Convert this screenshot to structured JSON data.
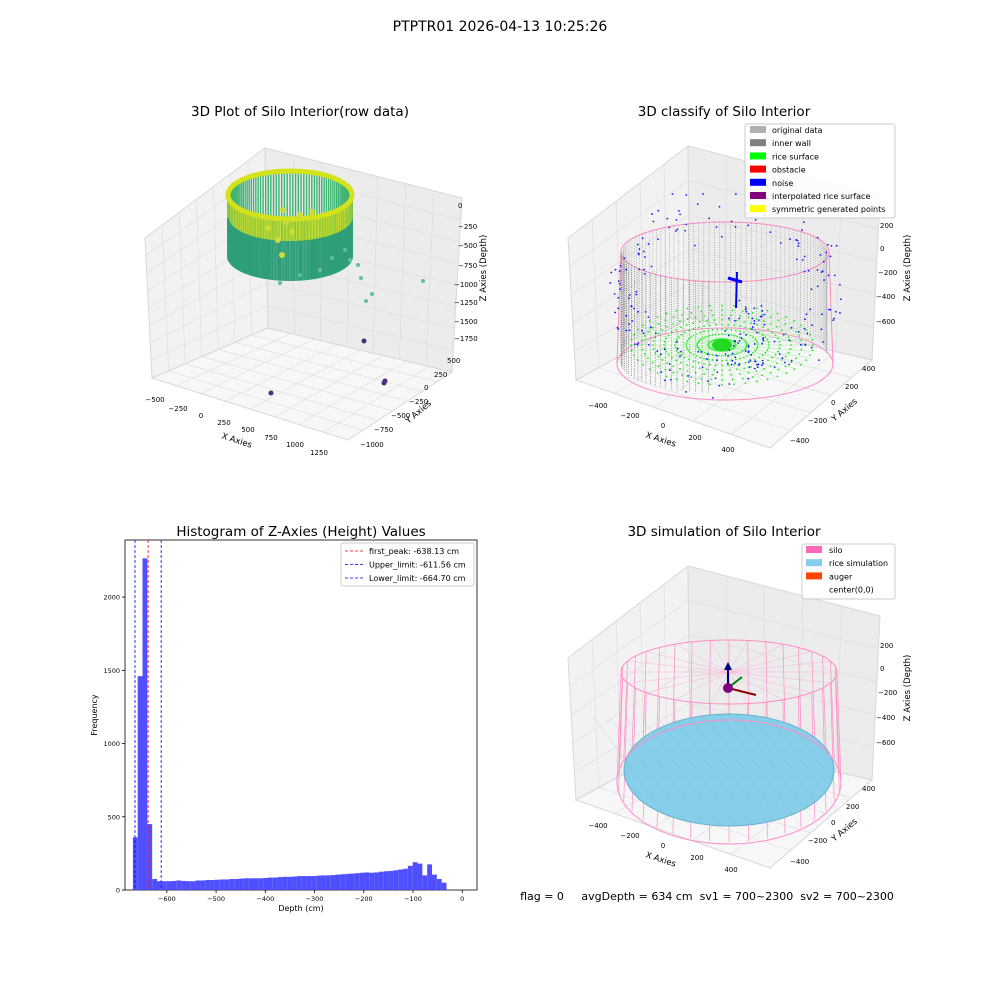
{
  "figure_title": "PTPTR01 2026-04-13 10:25:26",
  "panels": {
    "raw": {
      "title": "3D Plot of Silo Interior(row data)",
      "xlabel": "X Axies",
      "ylabel": "Y Axies",
      "zlabel": "Z Axies (Depth)",
      "xticks": [
        "−500",
        "−250",
        "0",
        "250",
        "500",
        "750",
        "1000",
        "1250"
      ],
      "yticks": [
        "500",
        "250",
        "0",
        "−250",
        "−500",
        "−750",
        "−1000"
      ],
      "zticks": [
        "0",
        "−250",
        "−500",
        "−750",
        "−1000",
        "−1250",
        "−1500",
        "−1750"
      ]
    },
    "classify": {
      "title": "3D classify of Silo Interior",
      "xlabel": "X Axies",
      "ylabel": "Y Axies",
      "zlabel": "Z Axies (Depth)",
      "xticks": [
        "−400",
        "−200",
        "0",
        "200",
        "400"
      ],
      "yticks": [
        "400",
        "200",
        "0",
        "−200",
        "−400"
      ],
      "zticks": [
        "200",
        "0",
        "−200",
        "−400",
        "−600"
      ],
      "legend": [
        {
          "label": "original data",
          "color": "#b0b0b0"
        },
        {
          "label": "inner wall",
          "color": "#808080"
        },
        {
          "label": "rice surface",
          "color": "#00ff00"
        },
        {
          "label": "obstacle",
          "color": "#ff0000"
        },
        {
          "label": "noise",
          "color": "#0000ff"
        },
        {
          "label": "interpolated rice surface",
          "color": "#800080"
        },
        {
          "label": "symmetric generated points",
          "color": "#ffff00"
        }
      ]
    },
    "simulation": {
      "title": "3D simulation of Silo Interior",
      "xlabel": "X Axies",
      "ylabel": "Y Axies",
      "zlabel": "Z Axies (Depth)",
      "xticks": [
        "−400",
        "−200",
        "0",
        "200",
        "400"
      ],
      "yticks": [
        "400",
        "200",
        "0",
        "−200",
        "−400"
      ],
      "zticks": [
        "200",
        "0",
        "−200",
        "−400",
        "−600"
      ],
      "legend": [
        {
          "label": "silo",
          "color": "#ff69b4"
        },
        {
          "label": "rice simulation",
          "color": "#87ceeb"
        },
        {
          "label": "auger",
          "color": "#ff4500"
        },
        {
          "label": "center(0,0)",
          "color": "#ffffff"
        }
      ]
    }
  },
  "status_line": "flag = 0     avgDepth = 634 cm  sv1 = 700~2300  sv2 = 700~2300",
  "chart_data": {
    "type": "bar",
    "title": "Histogram of Z-Axies (Height) Values",
    "xlabel": "Depth (cm)",
    "ylabel": "Frequency",
    "xlim": [
      -685,
      30
    ],
    "ylim": [
      0,
      2390
    ],
    "xticks": [
      -600,
      -500,
      -400,
      -300,
      -200,
      -100,
      0
    ],
    "xtick_labels": [
      "−600",
      "−500",
      "−400",
      "−300",
      "−200",
      "−100",
      "0"
    ],
    "yticks": [
      0,
      500,
      1000,
      1500,
      2000
    ],
    "yticks_labels": [
      "0",
      "500",
      "1000",
      "1500",
      "2000"
    ],
    "bar_color": "#4b4bff",
    "bin_width": 9.8,
    "bins_start": -669,
    "values": [
      360,
      1460,
      2265,
      450,
      75,
      60,
      60,
      60,
      62,
      65,
      62,
      60,
      60,
      65,
      65,
      68,
      68,
      70,
      72,
      72,
      75,
      75,
      78,
      80,
      80,
      80,
      80,
      82,
      85,
      85,
      88,
      90,
      90,
      92,
      95,
      95,
      95,
      95,
      98,
      100,
      100,
      102,
      105,
      108,
      110,
      112,
      115,
      118,
      120,
      118,
      120,
      125,
      128,
      130,
      135,
      140,
      145,
      165,
      190,
      180,
      100,
      175,
      105,
      75,
      50
    ],
    "vlines": [
      {
        "label": "first_peak: -638.13 cm",
        "x": -638.13,
        "color": "#ff0000"
      },
      {
        "label": "Upper_limit: -611.56 cm",
        "x": -611.56,
        "color": "#0000ff"
      },
      {
        "label": "Lower_limit: -664.70 cm",
        "x": -664.7,
        "color": "#0000ff"
      }
    ],
    "legend_position": "top-right",
    "grid": false
  }
}
